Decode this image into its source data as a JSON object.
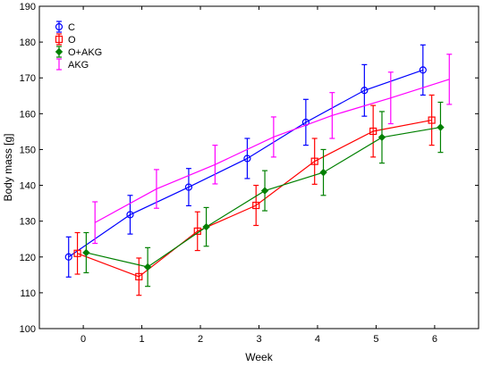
{
  "chart_data": {
    "type": "line",
    "title": "",
    "xlabel": "Week",
    "ylabel": "Body mass [g]",
    "xlim": [
      -0.75,
      6.75
    ],
    "ylim": [
      100,
      190
    ],
    "x_ticks": [
      0,
      1,
      2,
      3,
      4,
      5,
      6
    ],
    "y_ticks": [
      100,
      110,
      120,
      130,
      140,
      150,
      160,
      170,
      180,
      190
    ],
    "legend_position": "top-left",
    "grid": false,
    "series": [
      {
        "name": "C",
        "color": "#0000ff",
        "marker": "circle",
        "x": [
          -0.25,
          0.8,
          1.8,
          2.8,
          3.8,
          4.8,
          5.8
        ],
        "y": [
          120.0,
          131.8,
          139.5,
          147.5,
          157.6,
          166.5,
          172.2
        ],
        "err": [
          5.6,
          5.4,
          5.2,
          5.6,
          6.4,
          7.2,
          7.0
        ]
      },
      {
        "name": "O",
        "color": "#ff0000",
        "marker": "square",
        "x": [
          -0.1,
          0.95,
          1.95,
          2.95,
          3.95,
          4.95,
          5.95
        ],
        "y": [
          121.0,
          114.5,
          127.2,
          134.4,
          146.7,
          155.1,
          158.2
        ],
        "err": [
          5.8,
          5.2,
          5.4,
          5.6,
          6.4,
          7.2,
          7.0
        ]
      },
      {
        "name": "O+AKG",
        "color": "#008000",
        "marker": "diamond",
        "x": [
          0.05,
          1.1,
          2.1,
          3.1,
          4.1,
          5.1,
          6.1
        ],
        "y": [
          121.2,
          117.2,
          128.4,
          138.5,
          143.6,
          153.4,
          156.2
        ],
        "err": [
          5.6,
          5.4,
          5.4,
          5.6,
          6.4,
          7.2,
          7.0
        ]
      },
      {
        "name": "AKG",
        "color": "#ff00ff",
        "marker": "none",
        "x": [
          0.2,
          1.25,
          2.25,
          3.25,
          4.25,
          5.25,
          6.25
        ],
        "y": [
          129.6,
          139.0,
          145.8,
          153.5,
          159.5,
          164.4,
          169.6
        ],
        "err": [
          5.8,
          5.4,
          5.4,
          5.6,
          6.4,
          7.2,
          7.0
        ]
      }
    ]
  }
}
